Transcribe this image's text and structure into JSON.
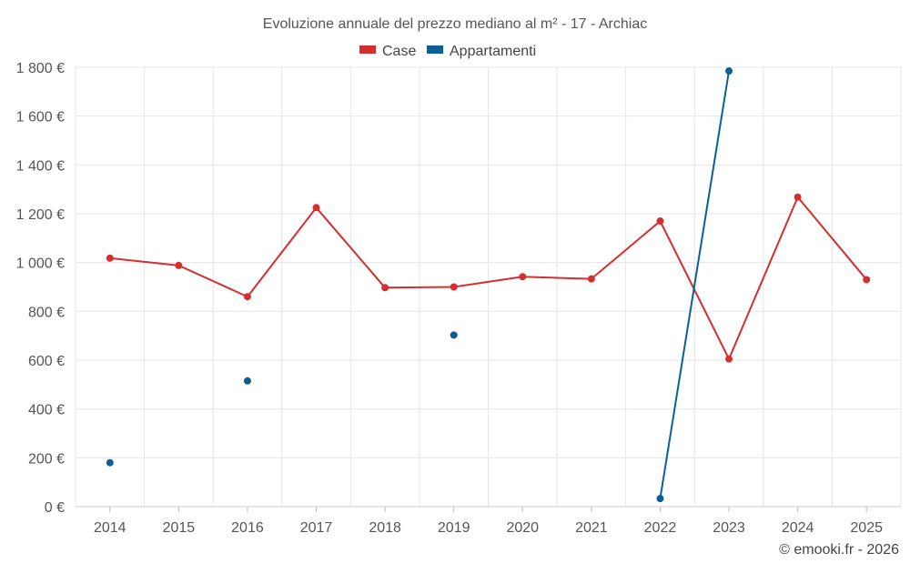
{
  "chart_data": {
    "type": "line",
    "title": "Evoluzione annuale del prezzo mediano al m² - 17 - Archiac",
    "categories": [
      "2014",
      "2015",
      "2016",
      "2017",
      "2018",
      "2019",
      "2020",
      "2021",
      "2022",
      "2023",
      "2024",
      "2025"
    ],
    "ylim": [
      0,
      1800
    ],
    "yticks": [
      0,
      200,
      400,
      600,
      800,
      1000,
      1200,
      1400,
      1600,
      1800
    ],
    "ytick_labels": [
      "0 €",
      "200 €",
      "400 €",
      "600 €",
      "800 €",
      "1 000 €",
      "1 200 €",
      "1 400 €",
      "1 600 €",
      "1 800 €"
    ],
    "grid": true,
    "legend_position": "top-center",
    "series": [
      {
        "name": "Case",
        "color": "#d32f2f",
        "values": [
          1018,
          988,
          860,
          1225,
          897,
          900,
          942,
          933,
          1170,
          605,
          1268,
          930
        ]
      },
      {
        "name": "Appartamenti",
        "color": "#0a5f96",
        "values": [
          180,
          null,
          515,
          null,
          null,
          703,
          null,
          null,
          33,
          1785,
          null,
          null
        ]
      }
    ],
    "credit": "© emooki.fr - 2026"
  }
}
